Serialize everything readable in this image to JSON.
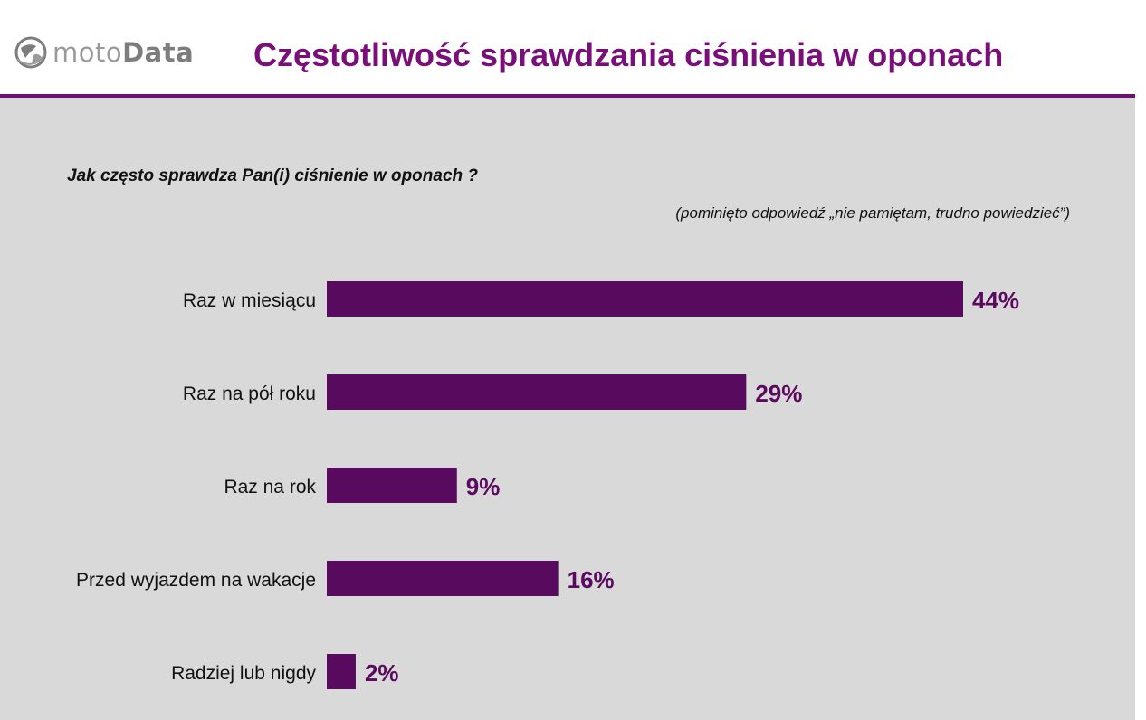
{
  "header": {
    "logo": {
      "part1": "moto",
      "part2": "Data"
    },
    "title": "Częstotliwość sprawdzania ciśnienia w oponach"
  },
  "question": "Jak często sprawdza Pan(i) ciśnienie w oponach ?",
  "note": "(pominięto odpowiedź „nie pamiętam, trudno powiedzieć”)",
  "colors": {
    "accent": "#7b0f7a",
    "bar": "#570a5e",
    "panel": "#d9d9d9"
  },
  "chart_data": {
    "type": "bar",
    "orientation": "horizontal",
    "categories": [
      "Raz w miesiącu",
      "Raz na pół roku",
      "Raz na rok",
      "Przed wyjazdem na wakacje",
      "Radziej lub nigdy"
    ],
    "values": [
      44,
      29,
      9,
      16,
      2
    ],
    "value_labels": [
      "44%",
      "29%",
      "9%",
      "16%",
      "2%"
    ],
    "unit": "%",
    "xlim": [
      0,
      44
    ],
    "grid": false,
    "legend": "none"
  }
}
